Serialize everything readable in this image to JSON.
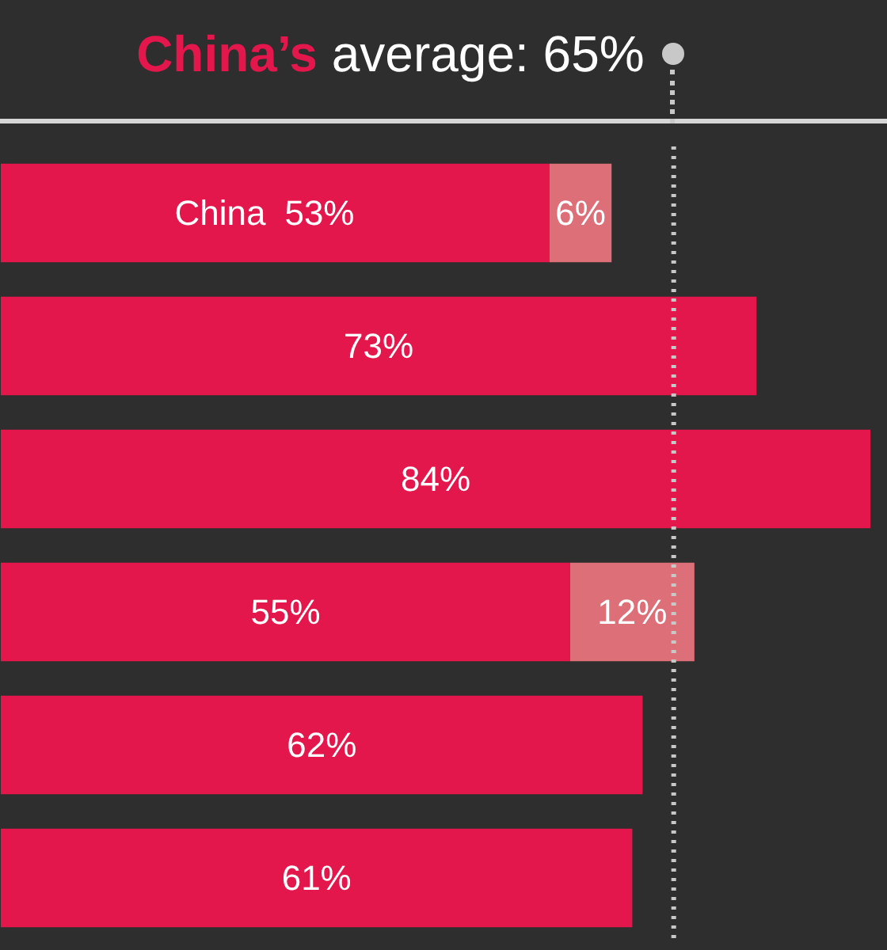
{
  "chart_data": {
    "type": "bar",
    "orientation": "horizontal",
    "stacked": true,
    "categories": [
      "China",
      null,
      null,
      null,
      null,
      null
    ],
    "series": [
      {
        "color": "#e3174b",
        "values": [
          53,
          73,
          84,
          55,
          62,
          61
        ],
        "value_labels": [
          "53%",
          "73%",
          "84%",
          "55%",
          "62%",
          "61%"
        ]
      },
      {
        "color": "#dc6f78",
        "values": [
          6,
          null,
          null,
          12,
          null,
          null
        ],
        "value_labels": [
          "6%",
          null,
          null,
          "12%",
          null,
          null
        ]
      }
    ],
    "ref_lines": [
      {
        "axis": "x",
        "value": 65,
        "label": "China’s average: 65%",
        "color": "#c8c8c8",
        "line_style": "dotted"
      }
    ]
  }
}
